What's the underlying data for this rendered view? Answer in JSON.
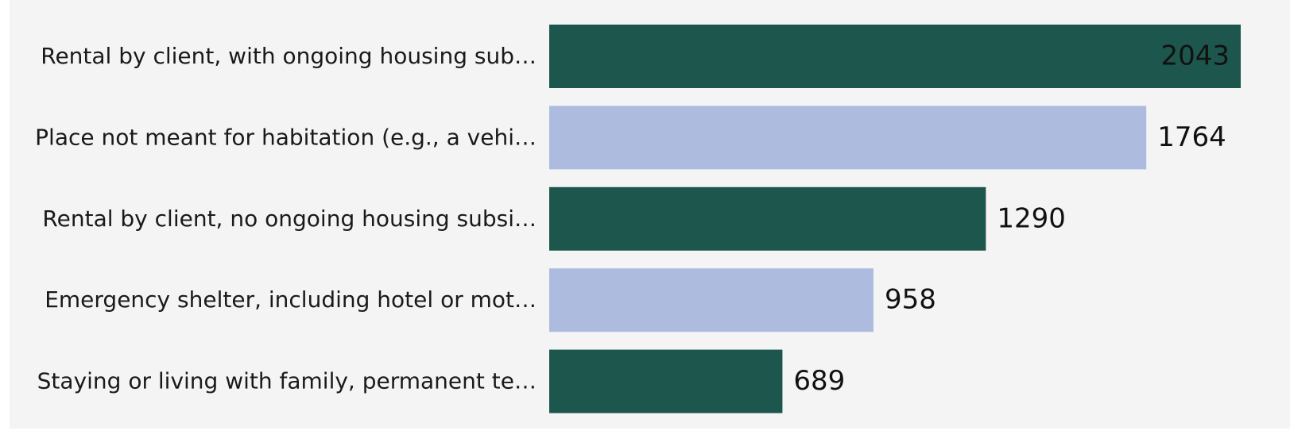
{
  "chart_data": {
    "type": "bar",
    "orientation": "horizontal",
    "categories": [
      "Rental by client, with ongoing housing sub…",
      "Place not meant for habitation (e.g., a vehi…",
      "Rental by client, no ongoing housing subsi…",
      "Emergency shelter, including hotel or mot…",
      "Staying or living with family, permanent te…"
    ],
    "values": [
      2043,
      1764,
      1290,
      958,
      689
    ],
    "colors": [
      "#1d564c",
      "#adbcde",
      "#1d564c",
      "#adbcde",
      "#1d564c"
    ]
  }
}
